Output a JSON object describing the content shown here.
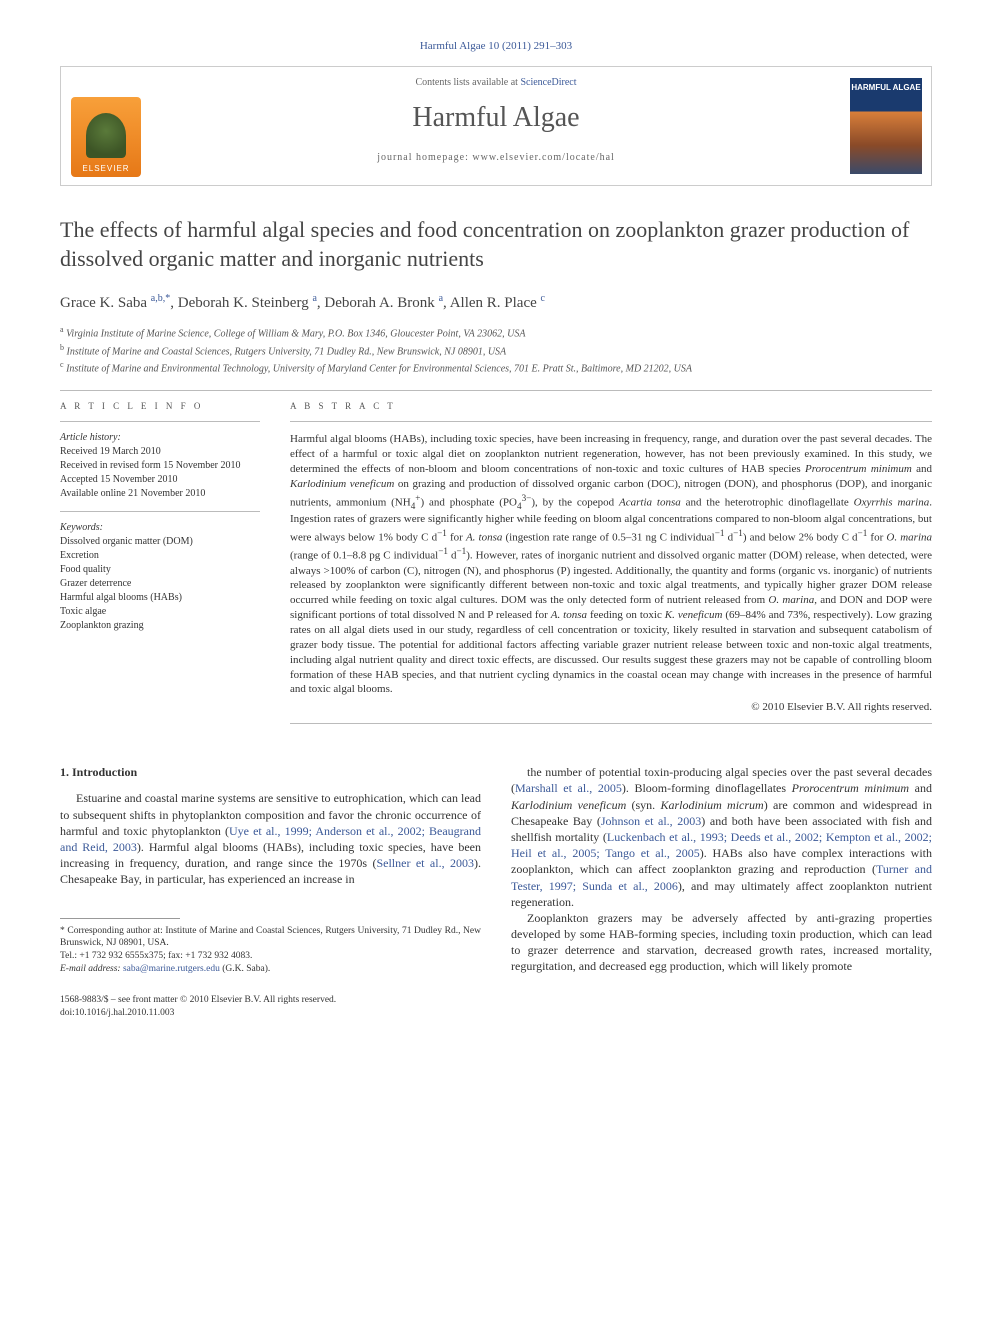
{
  "running_header": "Harmful Algae 10 (2011) 291–303",
  "masthead": {
    "publisher_name": "ELSEVIER",
    "contents_prefix": "Contents lists available at ",
    "contents_link": "ScienceDirect",
    "journal_name": "Harmful Algae",
    "homepage_prefix": "journal homepage: ",
    "homepage_url": "www.elsevier.com/locate/hal",
    "cover_title": "HARMFUL ALGAE"
  },
  "article": {
    "title": "The effects of harmful algal species and food concentration on zooplankton grazer production of dissolved organic matter and inorganic nutrients",
    "authors": [
      {
        "name": "Grace K. Saba",
        "marks": "a,b,*"
      },
      {
        "name": "Deborah K. Steinberg",
        "marks": "a"
      },
      {
        "name": "Deborah A. Bronk",
        "marks": "a"
      },
      {
        "name": "Allen R. Place",
        "marks": "c"
      }
    ],
    "affiliations": [
      {
        "mark": "a",
        "text": "Virginia Institute of Marine Science, College of William & Mary, P.O. Box 1346, Gloucester Point, VA 23062, USA"
      },
      {
        "mark": "b",
        "text": "Institute of Marine and Coastal Sciences, Rutgers University, 71 Dudley Rd., New Brunswick, NJ 08901, USA"
      },
      {
        "mark": "c",
        "text": "Institute of Marine and Environmental Technology, University of Maryland Center for Environmental Sciences, 701 E. Pratt St., Baltimore, MD 21202, USA"
      }
    ]
  },
  "article_info": {
    "header": "A R T I C L E  I N F O",
    "history_label": "Article history:",
    "history": [
      "Received 19 March 2010",
      "Received in revised form 15 November 2010",
      "Accepted 15 November 2010",
      "Available online 21 November 2010"
    ],
    "keywords_label": "Keywords:",
    "keywords": [
      "Dissolved organic matter (DOM)",
      "Excretion",
      "Food quality",
      "Grazer deterrence",
      "Harmful algal blooms (HABs)",
      "Toxic algae",
      "Zooplankton grazing"
    ]
  },
  "abstract": {
    "header": "A B S T R A C T",
    "text_html": "Harmful algal blooms (HABs), including toxic species, have been increasing in frequency, range, and duration over the past several decades. The effect of a harmful or toxic algal diet on zooplankton nutrient regeneration, however, has not been previously examined. In this study, we determined the effects of non-bloom and bloom concentrations of non-toxic and toxic cultures of HAB species <i>Prorocentrum minimum</i> and <i>Karlodinium veneficum</i> on grazing and production of dissolved organic carbon (DOC), nitrogen (DON), and phosphorus (DOP), and inorganic nutrients, ammonium (NH<sub>4</sub><sup>+</sup>) and phosphate (PO<sub>4</sub><sup>3−</sup>), by the copepod <i>Acartia tonsa</i> and the heterotrophic dinoflagellate <i>Oxyrrhis marina</i>. Ingestion rates of grazers were significantly higher while feeding on bloom algal concentrations compared to non-bloom algal concentrations, but were always below 1% body C d<sup>−1</sup> for <i>A. tonsa</i> (ingestion rate range of 0.5–31 ng C individual<sup>−1</sup> d<sup>−1</sup>) and below 2% body C d<sup>−1</sup> for <i>O. marina</i> (range of 0.1–8.8 pg C individual<sup>−1</sup> d<sup>−1</sup>). However, rates of inorganic nutrient and dissolved organic matter (DOM) release, when detected, were always >100% of carbon (C), nitrogen (N), and phosphorus (P) ingested. Additionally, the quantity and forms (organic vs. inorganic) of nutrients released by zooplankton were significantly different between non-toxic and toxic algal treatments, and typically higher grazer DOM release occurred while feeding on toxic algal cultures. DOM was the only detected form of nutrient released from <i>O. marina</i>, and DON and DOP were significant portions of total dissolved N and P released for <i>A. tonsa</i> feeding on toxic <i>K. veneficum</i> (69–84% and 73%, respectively). Low grazing rates on all algal diets used in our study, regardless of cell concentration or toxicity, likely resulted in starvation and subsequent catabolism of grazer body tissue. The potential for additional factors affecting variable grazer nutrient release between toxic and non-toxic algal treatments, including algal nutrient quality and direct toxic effects, are discussed. Our results suggest these grazers may not be capable of controlling bloom formation of these HAB species, and that nutrient cycling dynamics in the coastal ocean may change with increases in the presence of harmful and toxic algal blooms.",
    "copyright": "© 2010 Elsevier B.V. All rights reserved."
  },
  "body": {
    "section_heading": "1. Introduction",
    "col1_html": "Estuarine and coastal marine systems are sensitive to eutrophication, which can lead to subsequent shifts in phytoplankton composition and favor the chronic occurrence of harmful and toxic phytoplankton (<a href='#'>Uye et al., 1999; Anderson et al., 2002; Beaugrand and Reid, 2003</a>). Harmful algal blooms (HABs), including toxic species, have been increasing in frequency, duration, and range since the 1970s (<a href='#'>Sellner et al., 2003</a>). Chesapeake Bay, in particular, has experienced an increase in",
    "col2_p1_html": "the number of potential toxin-producing algal species over the past several decades (<a href='#'>Marshall et al., 2005</a>). Bloom-forming dinoflagellates <i>Prorocentrum minimum</i> and <i>Karlodinium veneficum</i> (syn. <i>Karlodinium micrum</i>) are common and widespread in Chesapeake Bay (<a href='#'>Johnson et al., 2003</a>) and both have been associated with fish and shellfish mortality (<a href='#'>Luckenbach et al., 1993; Deeds et al., 2002; Kempton et al., 2002; Heil et al., 2005; Tango et al., 2005</a>). HABs also have complex interactions with zooplankton, which can affect zooplankton grazing and reproduction (<a href='#'>Turner and Tester, 1997; Sunda et al., 2006</a>), and may ultimately affect zooplankton nutrient regeneration.",
    "col2_p2_html": "Zooplankton grazers may be adversely affected by anti-grazing properties developed by some HAB-forming species, including toxin production, which can lead to grazer deterrence and starvation, decreased growth rates, increased mortality, regurgitation, and decreased egg production, which will likely promote"
  },
  "footnotes": {
    "corresponding": "* Corresponding author at: Institute of Marine and Coastal Sciences, Rutgers University, 71 Dudley Rd., New Brunswick, NJ 08901, USA.",
    "tel_fax": "Tel.: +1 732 932 6555x375; fax: +1 732 932 4083.",
    "email_label": "E-mail address:",
    "email": "saba@marine.rutgers.edu",
    "email_paren": "(G.K. Saba)."
  },
  "bottom": {
    "issn_line": "1568-9883/$ – see front matter © 2010 Elsevier B.V. All rights reserved.",
    "doi_line": "doi:10.1016/j.hal.2010.11.003"
  },
  "colors": {
    "link": "#3b5998",
    "text": "#333333",
    "rule": "#bbbbbb",
    "elsevier_orange": "#e67817",
    "cover_blue": "#1a3a6e"
  }
}
